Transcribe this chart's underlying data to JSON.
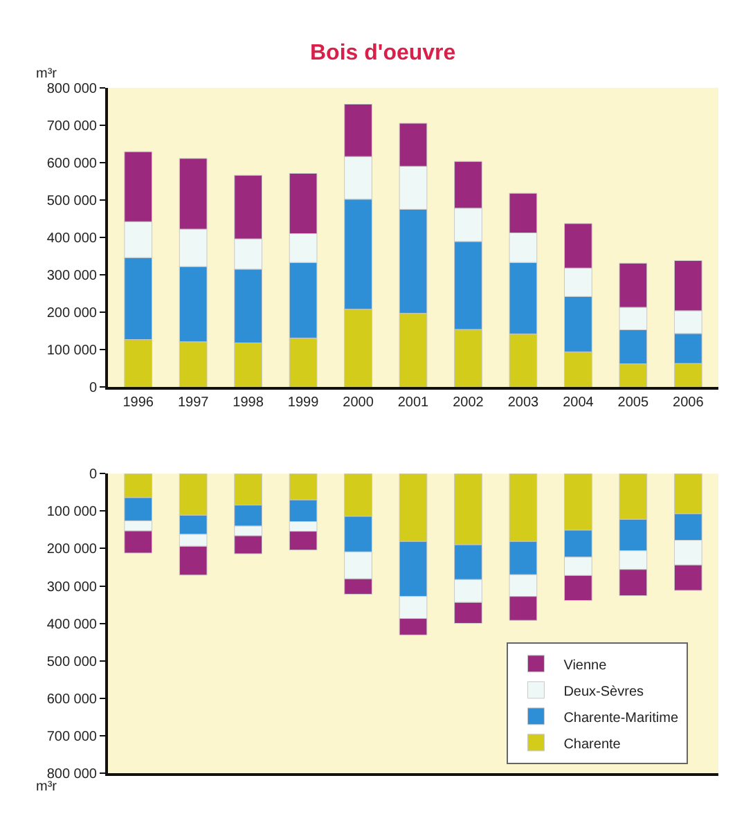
{
  "chart_data": [
    {
      "type": "bar",
      "title": "Bois d'oeuvre",
      "ylabel": "m³r",
      "stacked": true,
      "legend": false,
      "grid": false,
      "tick_labels": "xy",
      "categories": [
        "1996",
        "1997",
        "1998",
        "1999",
        "2000",
        "2001",
        "2002",
        "2003",
        "2004",
        "2005",
        "2006"
      ],
      "ylim": [
        0,
        800000
      ],
      "yticks": [
        0,
        {
          "value": 100000,
          "label": "100 000"
        },
        {
          "value": 200000,
          "label": "200 000"
        },
        {
          "value": 300000,
          "label": "300 000"
        },
        {
          "value": 400000,
          "label": "400 000"
        },
        {
          "value": 500000,
          "label": "500 000"
        },
        {
          "value": 600000,
          "label": "600 000"
        },
        {
          "value": 700000,
          "label": "700 000"
        },
        {
          "value": 800000,
          "label": "800 000"
        }
      ],
      "series": [
        {
          "color": "#d4cc1a",
          "values": [
            127000,
            121000,
            118000,
            131000,
            208000,
            197000,
            154000,
            142000,
            94000,
            62000,
            63000
          ]
        },
        {
          "color": "#2e8fd6",
          "values": [
            219000,
            201000,
            197000,
            202000,
            294000,
            278000,
            235000,
            191000,
            148000,
            91000,
            80000
          ]
        },
        {
          "color": "#eef8f6",
          "values": [
            96000,
            100000,
            81000,
            77000,
            114000,
            115000,
            89000,
            79000,
            76000,
            60000,
            61000
          ]
        },
        {
          "color": "#9b2a7e",
          "values": [
            187000,
            189000,
            170000,
            161000,
            140000,
            115000,
            125000,
            106000,
            119000,
            118000,
            134000
          ]
        }
      ]
    },
    {
      "type": "bar",
      "ylabel": "m³r",
      "stacked": true,
      "legend": "bottom right",
      "grid": false,
      "tick_labels": "y",
      "categories": [
        "1996",
        "1997",
        "1998",
        "1999",
        "2000",
        "2001",
        "2002",
        "2003",
        "2004",
        "2005",
        "2006"
      ],
      "ylim": [
        800000,
        0
      ],
      "yticks": [
        0,
        {
          "value": 100000,
          "label": "100 000"
        },
        {
          "value": 200000,
          "label": "200 000"
        },
        {
          "value": 300000,
          "label": "300 000"
        },
        {
          "value": 400000,
          "label": "400 000"
        },
        {
          "value": 500000,
          "label": "500 000"
        },
        {
          "value": 600000,
          "label": "600 000"
        },
        {
          "value": 700000,
          "label": "700 000"
        },
        {
          "value": 800000,
          "label": "800 000"
        }
      ],
      "series": [
        {
          "name": "Charente",
          "color": "#d4cc1a",
          "values": [
            64000,
            111000,
            84000,
            70000,
            114000,
            181000,
            190000,
            181000,
            151000,
            122000,
            107000
          ]
        },
        {
          "name": "Charente-Maritime",
          "color": "#2e8fd6",
          "values": [
            62000,
            51000,
            56000,
            58000,
            95000,
            147000,
            93000,
            89000,
            72000,
            84000,
            71000
          ]
        },
        {
          "name": "Deux-Sèvres",
          "color": "#eef8f6",
          "values": [
            27000,
            32000,
            26000,
            26000,
            72000,
            59000,
            61000,
            58000,
            49000,
            50000,
            66000
          ]
        },
        {
          "name": "Vienne",
          "color": "#9b2a7e",
          "values": [
            59000,
            77000,
            48000,
            50000,
            41000,
            44000,
            56000,
            64000,
            67000,
            70000,
            68000
          ]
        }
      ]
    }
  ]
}
